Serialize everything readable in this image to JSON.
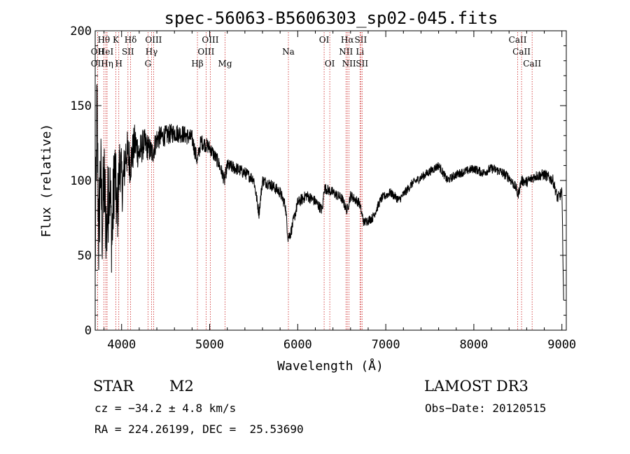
{
  "chart_data": {
    "type": "line",
    "title": "spec-56063-B5606303_sp02-045.fits",
    "xlabel": "Wavelength (Å)",
    "ylabel": "Flux (relative)",
    "xlim": [
      3700,
      9050
    ],
    "ylim": [
      0,
      200
    ],
    "xticks": [
      4000,
      5000,
      6000,
      7000,
      8000,
      9000
    ],
    "yticks": [
      0,
      50,
      100,
      150,
      200
    ],
    "line_color": "#000000",
    "marker_color": "#cc2222",
    "series": [
      {
        "anchors": [
          [
            3700,
            40
          ],
          [
            3720,
            150
          ],
          [
            3740,
            60
          ],
          [
            3760,
            110
          ],
          [
            3780,
            70
          ],
          [
            3800,
            100
          ],
          [
            3830,
            65
          ],
          [
            3860,
            105
          ],
          [
            3890,
            60
          ],
          [
            3920,
            110
          ],
          [
            3950,
            75
          ],
          [
            3980,
            115
          ],
          [
            4010,
            95
          ],
          [
            4050,
            120
          ],
          [
            4100,
            112
          ],
          [
            4150,
            125
          ],
          [
            4200,
            118
          ],
          [
            4250,
            125
          ],
          [
            4300,
            122
          ],
          [
            4350,
            118
          ],
          [
            4400,
            128
          ],
          [
            4500,
            130
          ],
          [
            4600,
            132
          ],
          [
            4700,
            131
          ],
          [
            4800,
            128
          ],
          [
            4860,
            113
          ],
          [
            4900,
            126
          ],
          [
            5000,
            122
          ],
          [
            5100,
            112
          ],
          [
            5170,
            100
          ],
          [
            5200,
            110
          ],
          [
            5300,
            108
          ],
          [
            5400,
            105
          ],
          [
            5500,
            101
          ],
          [
            5560,
            78
          ],
          [
            5600,
            100
          ],
          [
            5700,
            97
          ],
          [
            5800,
            92
          ],
          [
            5860,
            83
          ],
          [
            5890,
            62
          ],
          [
            5920,
            65
          ],
          [
            6000,
            85
          ],
          [
            6100,
            90
          ],
          [
            6200,
            86
          ],
          [
            6280,
            80
          ],
          [
            6300,
            95
          ],
          [
            6400,
            92
          ],
          [
            6500,
            88
          ],
          [
            6560,
            80
          ],
          [
            6600,
            90
          ],
          [
            6700,
            85
          ],
          [
            6750,
            72
          ],
          [
            6850,
            75
          ],
          [
            6950,
            88
          ],
          [
            7050,
            92
          ],
          [
            7150,
            87
          ],
          [
            7300,
            98
          ],
          [
            7500,
            106
          ],
          [
            7600,
            110
          ],
          [
            7700,
            100
          ],
          [
            7800,
            104
          ],
          [
            7900,
            106
          ],
          [
            8000,
            108
          ],
          [
            8100,
            105
          ],
          [
            8200,
            108
          ],
          [
            8300,
            106
          ],
          [
            8400,
            102
          ],
          [
            8480,
            95
          ],
          [
            8500,
            90
          ],
          [
            8540,
            100
          ],
          [
            8600,
            99
          ],
          [
            8700,
            103
          ],
          [
            8800,
            104
          ],
          [
            8900,
            100
          ],
          [
            8950,
            88
          ],
          [
            9000,
            92
          ],
          [
            9020,
            20
          ]
        ],
        "noise": [
          [
            3700,
            35
          ],
          [
            3900,
            30
          ],
          [
            4000,
            18
          ],
          [
            4300,
            9
          ],
          [
            4500,
            7
          ],
          [
            5000,
            5
          ],
          [
            5500,
            4
          ],
          [
            6000,
            4
          ],
          [
            7000,
            3
          ],
          [
            8000,
            3
          ],
          [
            9000,
            4
          ]
        ]
      }
    ],
    "line_markers": [
      {
        "wavelength": 3727,
        "label": "OII",
        "row": 2
      },
      {
        "wavelength": 3727,
        "label": "OII",
        "row": 3
      },
      {
        "wavelength": 3798,
        "label": "Hθ",
        "row": 1
      },
      {
        "wavelength": 3820,
        "label": "HeI",
        "row": 2
      },
      {
        "wavelength": 3835,
        "label": "Hη",
        "row": 3
      },
      {
        "wavelength": 3934,
        "label": "K",
        "row": 1
      },
      {
        "wavelength": 3968,
        "label": "H",
        "row": 3
      },
      {
        "wavelength": 4072,
        "label": "SII",
        "row": 2
      },
      {
        "wavelength": 4102,
        "label": "Hδ",
        "row": 1
      },
      {
        "wavelength": 4300,
        "label": "G",
        "row": 3
      },
      {
        "wavelength": 4340,
        "label": "Hγ",
        "row": 2
      },
      {
        "wavelength": 4363,
        "label": "OIII",
        "row": 1
      },
      {
        "wavelength": 4861,
        "label": "Hβ",
        "row": 3
      },
      {
        "wavelength": 4959,
        "label": "OIII",
        "row": 2
      },
      {
        "wavelength": 5007,
        "label": "OIII",
        "row": 1
      },
      {
        "wavelength": 5175,
        "label": "Mg",
        "row": 3
      },
      {
        "wavelength": 5894,
        "label": "Na",
        "row": 2
      },
      {
        "wavelength": 6300,
        "label": "OI",
        "row": 1
      },
      {
        "wavelength": 6364,
        "label": "OI",
        "row": 3
      },
      {
        "wavelength": 6548,
        "label": "NII",
        "row": 2
      },
      {
        "wavelength": 6563,
        "label": "Hα",
        "row": 1
      },
      {
        "wavelength": 6583,
        "label": "NII",
        "row": 3
      },
      {
        "wavelength": 6707,
        "label": "Li",
        "row": 2
      },
      {
        "wavelength": 6716,
        "label": "SII",
        "row": 1
      },
      {
        "wavelength": 6731,
        "label": "SII",
        "row": 3
      },
      {
        "wavelength": 8498,
        "label": "CaII",
        "row": 1
      },
      {
        "wavelength": 8542,
        "label": "CaII",
        "row": 2
      },
      {
        "wavelength": 8662,
        "label": "CaII",
        "row": 3
      }
    ]
  },
  "info": {
    "object_class": "STAR",
    "subclass": "M2",
    "survey": "LAMOST DR3",
    "cz": "cz = −34.2 ± 4.8 km/s",
    "obs_date": "Obs−Date: 20120515",
    "coords": "RA = 224.26199, DEC =  25.53690"
  }
}
